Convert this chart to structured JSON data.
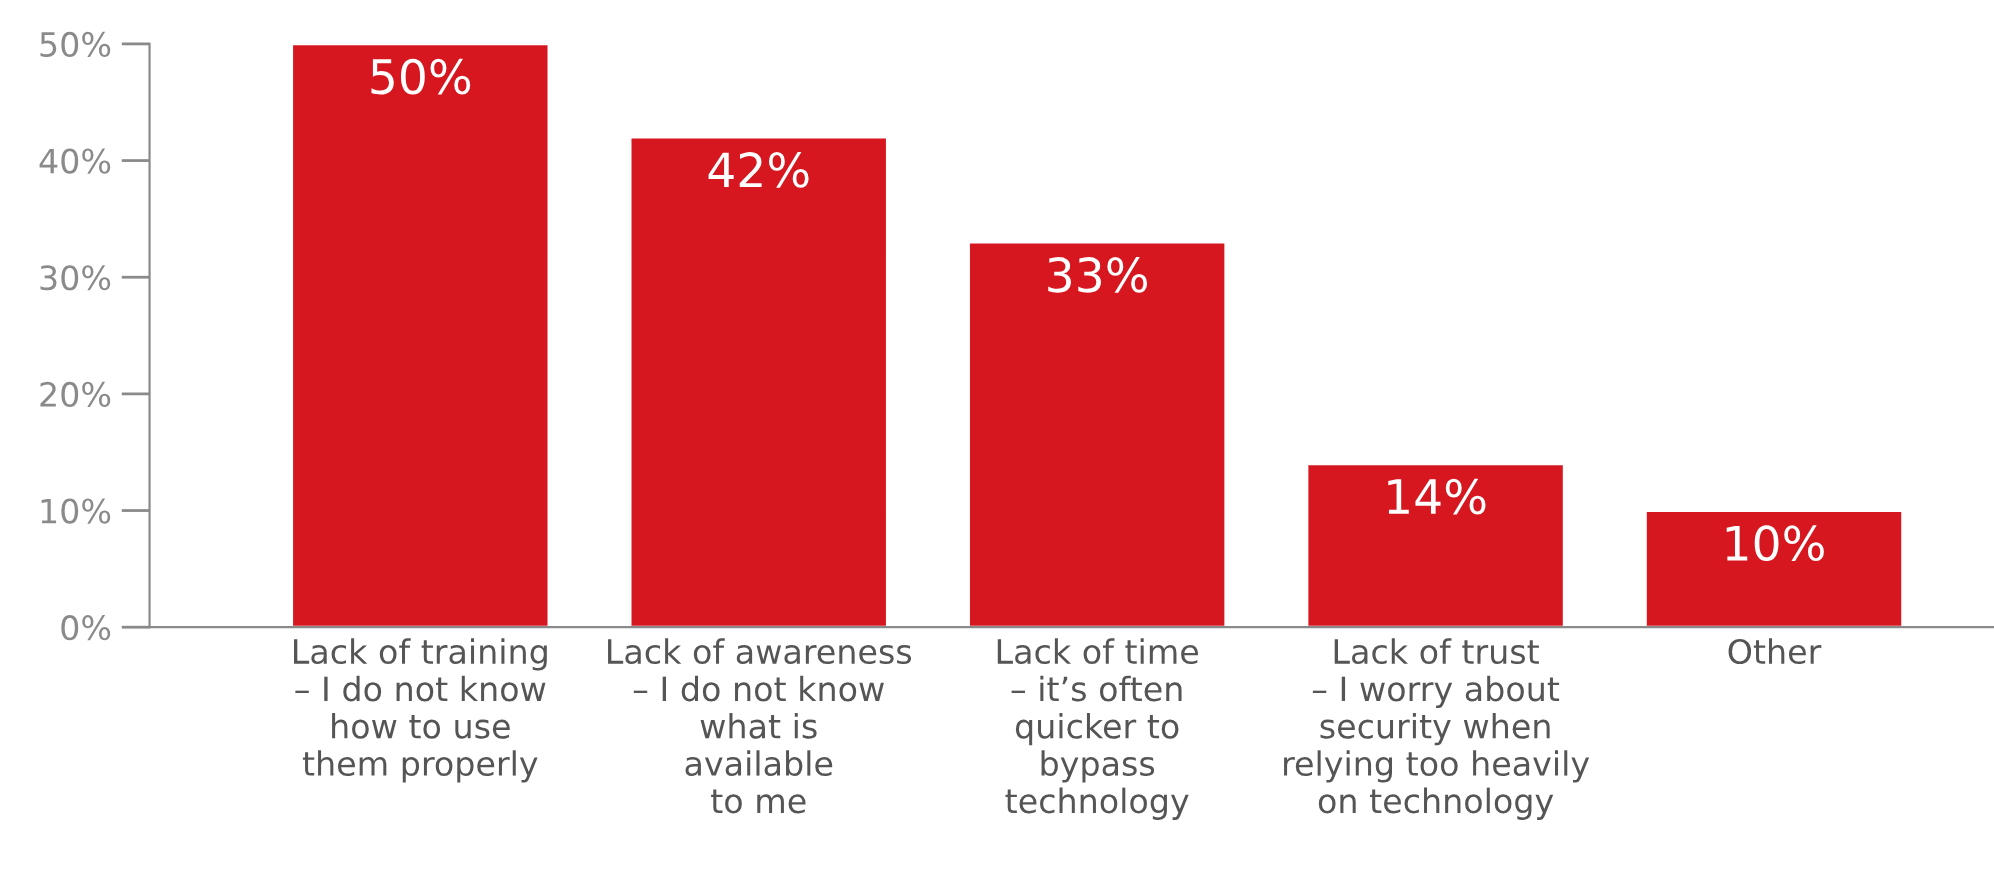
{
  "chart_data": {
    "type": "bar",
    "categories": [
      "Lack of training\n– I do not know\nhow to use\nthem properly",
      "Lack of awareness\n– I do not know\nwhat is\navailable\nto me",
      "Lack of time\n– it’s often\nquicker to\nbypass\ntechnology",
      "Lack of trust\n– I worry about\nsecurity when\nrelying too heavily\non technology",
      "Other"
    ],
    "values": [
      50,
      42,
      33,
      14,
      10
    ],
    "value_labels": [
      "50%",
      "42%",
      "33%",
      "14%",
      "10%"
    ],
    "color": "#d7171f",
    "ylim": [
      0,
      50
    ],
    "yticks": [
      {
        "value": 0,
        "label": "0%"
      },
      {
        "value": 10,
        "label": "10%"
      },
      {
        "value": 20,
        "label": "20%"
      },
      {
        "value": 30,
        "label": "30%"
      },
      {
        "value": 40,
        "label": "40%"
      },
      {
        "value": 50,
        "label": "50%"
      }
    ],
    "grid": false,
    "legend": false
  }
}
